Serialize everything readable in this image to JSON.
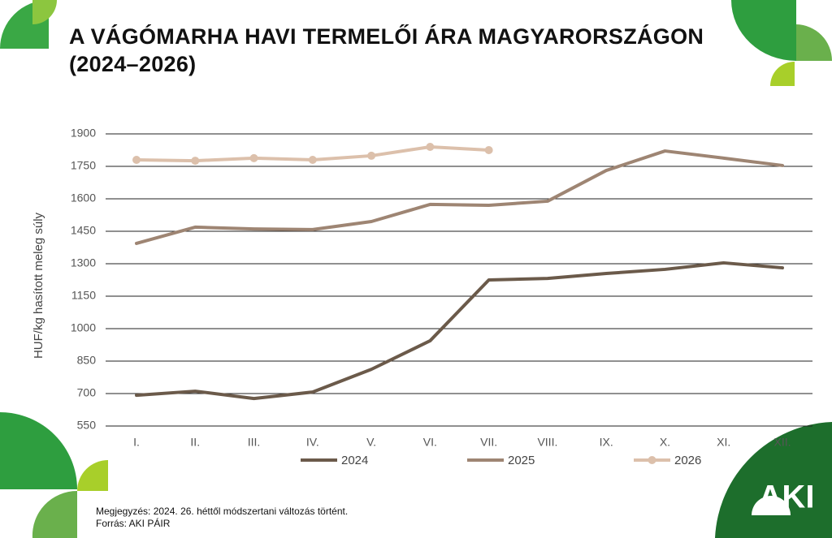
{
  "chart_data": {
    "type": "line",
    "title": "A VÁGÓMARHA HAVI TERMELŐI ÁRA MAGYARORSZÁGON (2024–2026)",
    "y_label": "HUF/kg hasított meleg súly",
    "categories": [
      "I.",
      "II.",
      "III.",
      "IV.",
      "V.",
      "VI.",
      "VII.",
      "VIII.",
      "IX.",
      "X.",
      "XI.",
      "XII."
    ],
    "series": [
      {
        "name": "2024",
        "color": "#6b5a4a",
        "markers": false,
        "values": [
          692,
          711,
          677,
          707,
          812,
          944,
          1225,
          1232,
          1255,
          1274,
          1304,
          1281
        ]
      },
      {
        "name": "2025",
        "color": "#9e8573",
        "markers": false,
        "values": [
          1394,
          1469,
          1461,
          1458,
          1495,
          1574,
          1570,
          1589,
          1731,
          1821,
          1788,
          1754
        ]
      },
      {
        "name": "2026",
        "color": "#dcc0ab",
        "markers": true,
        "values": [
          1780,
          1776,
          1788,
          1780,
          1799,
          1840,
          1825,
          null,
          null,
          null,
          null,
          null
        ]
      }
    ],
    "ylim": [
      550,
      1900
    ],
    "yticks": [
      550,
      700,
      850,
      1000,
      1150,
      1300,
      1450,
      1600,
      1750,
      1900
    ],
    "grid": true,
    "legend": "bottom",
    "note": "Megjegyzés: 2024. 26. héttől módszertani változás történt.",
    "source": "Forrás: AKI PÁIR"
  },
  "logo": "AKI"
}
